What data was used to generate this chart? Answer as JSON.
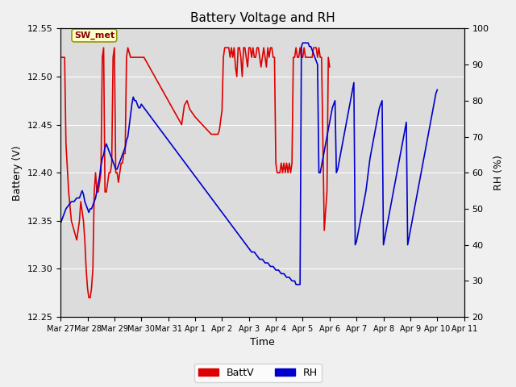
{
  "title": "Battery Voltage and RH",
  "xlabel": "Time",
  "ylabel_left": "Battery (V)",
  "ylabel_right": "RH (%)",
  "station_label": "SW_met",
  "ylim_left": [
    12.25,
    12.55
  ],
  "ylim_right": [
    20,
    100
  ],
  "yticks_left": [
    12.25,
    12.3,
    12.35,
    12.4,
    12.45,
    12.5,
    12.55
  ],
  "yticks_right": [
    20,
    30,
    40,
    50,
    60,
    70,
    80,
    90,
    100
  ],
  "batt_color": "#dd0000",
  "rh_color": "#0000cc",
  "legend_batt": "BattV",
  "legend_rh": "RH",
  "plot_bg_color": "#dcdcdc",
  "fig_bg_color": "#f0f0f0",
  "grid_color": "#ffffff",
  "x_tick_labels": [
    "Mar 27",
    "Mar 28",
    "Mar 29",
    "Mar 30",
    "Mar 31",
    "Apr 1",
    "Apr 2",
    "Apr 3",
    "Apr 4",
    "Apr 5",
    "Apr 6",
    "Apr 7",
    "Apr 8",
    "Apr 9",
    "Apr 10",
    "Apr 11"
  ],
  "x_tick_positions": [
    0,
    1,
    2,
    3,
    4,
    5,
    6,
    7,
    8,
    9,
    10,
    11,
    12,
    13,
    14,
    15
  ],
  "batt_data": [
    [
      0.0,
      12.52
    ],
    [
      0.05,
      12.52
    ],
    [
      0.1,
      12.52
    ],
    [
      0.15,
      12.52
    ],
    [
      0.2,
      12.43
    ],
    [
      0.3,
      12.38
    ],
    [
      0.4,
      12.35
    ],
    [
      0.5,
      12.34
    ],
    [
      0.6,
      12.33
    ],
    [
      0.65,
      12.34
    ],
    [
      0.7,
      12.35
    ],
    [
      0.75,
      12.37
    ],
    [
      0.8,
      12.36
    ],
    [
      0.85,
      12.35
    ],
    [
      0.9,
      12.33
    ],
    [
      0.95,
      12.3
    ],
    [
      1.0,
      12.28
    ],
    [
      1.05,
      12.27
    ],
    [
      1.1,
      12.27
    ],
    [
      1.15,
      12.28
    ],
    [
      1.2,
      12.3
    ],
    [
      1.25,
      12.38
    ],
    [
      1.3,
      12.4
    ],
    [
      1.35,
      12.38
    ],
    [
      1.4,
      12.38
    ],
    [
      1.45,
      12.39
    ],
    [
      1.5,
      12.4
    ],
    [
      1.55,
      12.52
    ],
    [
      1.6,
      12.53
    ],
    [
      1.65,
      12.38
    ],
    [
      1.7,
      12.38
    ],
    [
      1.75,
      12.39
    ],
    [
      1.8,
      12.4
    ],
    [
      1.85,
      12.4
    ],
    [
      1.9,
      12.41
    ],
    [
      1.95,
      12.52
    ],
    [
      2.0,
      12.53
    ],
    [
      2.05,
      12.4
    ],
    [
      2.1,
      12.4
    ],
    [
      2.15,
      12.39
    ],
    [
      2.2,
      12.4
    ],
    [
      2.25,
      12.41
    ],
    [
      2.3,
      12.41
    ],
    [
      2.35,
      12.42
    ],
    [
      2.4,
      12.42
    ],
    [
      2.45,
      12.52
    ],
    [
      2.5,
      12.53
    ],
    [
      2.6,
      12.52
    ],
    [
      2.7,
      12.52
    ],
    [
      2.8,
      12.52
    ],
    [
      3.0,
      12.52
    ],
    [
      3.1,
      12.52
    ],
    [
      3.2,
      12.515
    ],
    [
      3.3,
      12.51
    ],
    [
      3.4,
      12.505
    ],
    [
      3.5,
      12.5
    ],
    [
      3.6,
      12.495
    ],
    [
      3.7,
      12.49
    ],
    [
      3.8,
      12.485
    ],
    [
      3.9,
      12.48
    ],
    [
      4.0,
      12.475
    ],
    [
      4.1,
      12.47
    ],
    [
      4.2,
      12.465
    ],
    [
      4.3,
      12.46
    ],
    [
      4.4,
      12.455
    ],
    [
      4.5,
      12.45
    ],
    [
      4.6,
      12.47
    ],
    [
      4.7,
      12.475
    ],
    [
      4.8,
      12.466
    ],
    [
      4.9,
      12.462
    ],
    [
      5.0,
      12.458
    ],
    [
      5.1,
      12.455
    ],
    [
      5.2,
      12.452
    ],
    [
      5.3,
      12.449
    ],
    [
      5.4,
      12.446
    ],
    [
      5.5,
      12.443
    ],
    [
      5.6,
      12.44
    ],
    [
      5.7,
      12.44
    ],
    [
      5.75,
      12.44
    ],
    [
      5.8,
      12.44
    ],
    [
      5.85,
      12.44
    ],
    [
      5.9,
      12.444
    ],
    [
      6.0,
      12.465
    ],
    [
      6.05,
      12.52
    ],
    [
      6.1,
      12.53
    ],
    [
      6.15,
      12.53
    ],
    [
      6.2,
      12.53
    ],
    [
      6.25,
      12.53
    ],
    [
      6.3,
      12.52
    ],
    [
      6.35,
      12.53
    ],
    [
      6.4,
      12.52
    ],
    [
      6.45,
      12.53
    ],
    [
      6.5,
      12.51
    ],
    [
      6.55,
      12.5
    ],
    [
      6.6,
      12.53
    ],
    [
      6.65,
      12.53
    ],
    [
      6.7,
      12.52
    ],
    [
      6.75,
      12.5
    ],
    [
      6.8,
      12.53
    ],
    [
      6.85,
      12.53
    ],
    [
      6.9,
      12.52
    ],
    [
      6.95,
      12.51
    ],
    [
      7.0,
      12.53
    ],
    [
      7.05,
      12.53
    ],
    [
      7.1,
      12.52
    ],
    [
      7.15,
      12.53
    ],
    [
      7.2,
      12.52
    ],
    [
      7.25,
      12.52
    ],
    [
      7.3,
      12.53
    ],
    [
      7.35,
      12.53
    ],
    [
      7.4,
      12.52
    ],
    [
      7.45,
      12.51
    ],
    [
      7.5,
      12.52
    ],
    [
      7.55,
      12.53
    ],
    [
      7.6,
      12.52
    ],
    [
      7.65,
      12.51
    ],
    [
      7.7,
      12.53
    ],
    [
      7.75,
      12.52
    ],
    [
      7.8,
      12.53
    ],
    [
      7.85,
      12.53
    ],
    [
      7.9,
      12.52
    ],
    [
      7.95,
      12.52
    ],
    [
      8.0,
      12.41
    ],
    [
      8.05,
      12.4
    ],
    [
      8.1,
      12.4
    ],
    [
      8.15,
      12.4
    ],
    [
      8.2,
      12.41
    ],
    [
      8.25,
      12.4
    ],
    [
      8.3,
      12.41
    ],
    [
      8.35,
      12.4
    ],
    [
      8.4,
      12.41
    ],
    [
      8.45,
      12.4
    ],
    [
      8.5,
      12.41
    ],
    [
      8.55,
      12.4
    ],
    [
      8.6,
      12.41
    ],
    [
      8.65,
      12.52
    ],
    [
      8.7,
      12.52
    ],
    [
      8.75,
      12.53
    ],
    [
      8.8,
      12.52
    ],
    [
      8.85,
      12.52
    ],
    [
      8.9,
      12.53
    ],
    [
      8.95,
      12.52
    ],
    [
      9.0,
      12.52
    ],
    [
      9.05,
      12.53
    ],
    [
      9.1,
      12.52
    ],
    [
      9.15,
      12.52
    ],
    [
      9.2,
      12.52
    ],
    [
      9.25,
      12.52
    ],
    [
      9.3,
      12.52
    ],
    [
      9.35,
      12.52
    ],
    [
      9.4,
      12.53
    ],
    [
      9.45,
      12.53
    ],
    [
      9.5,
      12.53
    ],
    [
      9.55,
      12.52
    ],
    [
      9.6,
      12.53
    ],
    [
      9.65,
      12.52
    ],
    [
      9.7,
      12.52
    ],
    [
      9.8,
      12.34
    ],
    [
      9.85,
      12.36
    ],
    [
      9.9,
      12.38
    ],
    [
      9.95,
      12.52
    ],
    [
      10.0,
      12.51
    ]
  ],
  "rh_data": [
    [
      0.0,
      46
    ],
    [
      0.2,
      50
    ],
    [
      0.3,
      51
    ],
    [
      0.4,
      52
    ],
    [
      0.5,
      52
    ],
    [
      0.6,
      53
    ],
    [
      0.7,
      53
    ],
    [
      0.75,
      54
    ],
    [
      0.8,
      55
    ],
    [
      0.85,
      54
    ],
    [
      0.9,
      52
    ],
    [
      0.95,
      51
    ],
    [
      1.0,
      50
    ],
    [
      1.05,
      49
    ],
    [
      1.1,
      50
    ],
    [
      1.15,
      50
    ],
    [
      1.2,
      51
    ],
    [
      1.25,
      52
    ],
    [
      1.3,
      53
    ],
    [
      1.35,
      55
    ],
    [
      1.4,
      57
    ],
    [
      1.45,
      59
    ],
    [
      1.5,
      62
    ],
    [
      1.55,
      64
    ],
    [
      1.6,
      65
    ],
    [
      1.65,
      67
    ],
    [
      1.7,
      68
    ],
    [
      1.75,
      67
    ],
    [
      1.8,
      66
    ],
    [
      1.85,
      65
    ],
    [
      1.9,
      64
    ],
    [
      1.95,
      63
    ],
    [
      2.0,
      62
    ],
    [
      2.05,
      61
    ],
    [
      2.1,
      61
    ],
    [
      2.15,
      62
    ],
    [
      2.2,
      63
    ],
    [
      2.25,
      64
    ],
    [
      2.3,
      65
    ],
    [
      2.35,
      66
    ],
    [
      2.4,
      67
    ],
    [
      2.45,
      69
    ],
    [
      2.5,
      70
    ],
    [
      2.55,
      73
    ],
    [
      2.6,
      76
    ],
    [
      2.65,
      79
    ],
    [
      2.7,
      81
    ],
    [
      2.75,
      80
    ],
    [
      2.8,
      80
    ],
    [
      2.85,
      79
    ],
    [
      2.9,
      78
    ],
    [
      2.95,
      78
    ],
    [
      3.0,
      79
    ],
    [
      3.1,
      78
    ],
    [
      3.2,
      77
    ],
    [
      3.3,
      76
    ],
    [
      3.4,
      75
    ],
    [
      3.5,
      74
    ],
    [
      3.6,
      73
    ],
    [
      3.7,
      72
    ],
    [
      3.8,
      71
    ],
    [
      3.9,
      70
    ],
    [
      4.0,
      69
    ],
    [
      4.1,
      68
    ],
    [
      4.2,
      67
    ],
    [
      4.3,
      66
    ],
    [
      4.4,
      65
    ],
    [
      4.5,
      64
    ],
    [
      4.6,
      63
    ],
    [
      4.7,
      62
    ],
    [
      4.8,
      61
    ],
    [
      4.9,
      60
    ],
    [
      5.0,
      59
    ],
    [
      5.1,
      58
    ],
    [
      5.2,
      57
    ],
    [
      5.3,
      56
    ],
    [
      5.4,
      55
    ],
    [
      5.5,
      54
    ],
    [
      5.6,
      53
    ],
    [
      5.7,
      52
    ],
    [
      5.8,
      51
    ],
    [
      5.9,
      50
    ],
    [
      6.0,
      49
    ],
    [
      6.1,
      48
    ],
    [
      6.2,
      47
    ],
    [
      6.3,
      46
    ],
    [
      6.4,
      45
    ],
    [
      6.5,
      44
    ],
    [
      6.6,
      43
    ],
    [
      6.7,
      42
    ],
    [
      6.8,
      41
    ],
    [
      6.9,
      40
    ],
    [
      7.0,
      39
    ],
    [
      7.1,
      38
    ],
    [
      7.2,
      38
    ],
    [
      7.3,
      37
    ],
    [
      7.4,
      36
    ],
    [
      7.5,
      36
    ],
    [
      7.6,
      35
    ],
    [
      7.7,
      35
    ],
    [
      7.8,
      34
    ],
    [
      7.9,
      34
    ],
    [
      8.0,
      33
    ],
    [
      8.1,
      33
    ],
    [
      8.2,
      32
    ],
    [
      8.3,
      32
    ],
    [
      8.4,
      31
    ],
    [
      8.5,
      31
    ],
    [
      8.6,
      30
    ],
    [
      8.65,
      30
    ],
    [
      8.7,
      30
    ],
    [
      8.75,
      29
    ],
    [
      8.8,
      29
    ],
    [
      8.85,
      29
    ],
    [
      8.9,
      29
    ],
    [
      8.95,
      95
    ],
    [
      9.0,
      96
    ],
    [
      9.05,
      96
    ],
    [
      9.1,
      96
    ],
    [
      9.15,
      96
    ],
    [
      9.2,
      96
    ],
    [
      9.25,
      95
    ],
    [
      9.3,
      95
    ],
    [
      9.35,
      94
    ],
    [
      9.4,
      93
    ],
    [
      9.45,
      92
    ],
    [
      9.5,
      91
    ],
    [
      9.55,
      90
    ],
    [
      9.6,
      60
    ],
    [
      9.65,
      60
    ],
    [
      9.7,
      62
    ],
    [
      9.75,
      64
    ],
    [
      9.8,
      66
    ],
    [
      9.85,
      68
    ],
    [
      9.9,
      70
    ],
    [
      9.95,
      72
    ],
    [
      10.0,
      74
    ],
    [
      10.05,
      76
    ],
    [
      10.1,
      78
    ],
    [
      10.15,
      79
    ],
    [
      10.2,
      80
    ],
    [
      10.25,
      60
    ],
    [
      10.3,
      61
    ],
    [
      10.35,
      63
    ],
    [
      10.4,
      65
    ],
    [
      10.45,
      67
    ],
    [
      10.5,
      69
    ],
    [
      10.55,
      71
    ],
    [
      10.6,
      73
    ],
    [
      10.65,
      75
    ],
    [
      10.7,
      77
    ],
    [
      10.75,
      79
    ],
    [
      10.8,
      81
    ],
    [
      10.85,
      83
    ],
    [
      10.9,
      85
    ],
    [
      10.95,
      40
    ],
    [
      11.0,
      41
    ],
    [
      11.05,
      43
    ],
    [
      11.1,
      45
    ],
    [
      11.15,
      47
    ],
    [
      11.2,
      49
    ],
    [
      11.25,
      51
    ],
    [
      11.3,
      53
    ],
    [
      11.35,
      55
    ],
    [
      11.4,
      58
    ],
    [
      11.45,
      61
    ],
    [
      11.5,
      64
    ],
    [
      11.55,
      66
    ],
    [
      11.6,
      68
    ],
    [
      11.65,
      70
    ],
    [
      11.7,
      72
    ],
    [
      11.75,
      74
    ],
    [
      11.8,
      76
    ],
    [
      11.85,
      78
    ],
    [
      11.9,
      79
    ],
    [
      11.95,
      80
    ],
    [
      12.0,
      40
    ],
    [
      12.05,
      42
    ],
    [
      12.1,
      44
    ],
    [
      12.15,
      46
    ],
    [
      12.2,
      48
    ],
    [
      12.25,
      50
    ],
    [
      12.3,
      52
    ],
    [
      12.35,
      54
    ],
    [
      12.4,
      56
    ],
    [
      12.45,
      58
    ],
    [
      12.5,
      60
    ],
    [
      12.55,
      62
    ],
    [
      12.6,
      64
    ],
    [
      12.65,
      66
    ],
    [
      12.7,
      68
    ],
    [
      12.75,
      70
    ],
    [
      12.8,
      72
    ],
    [
      12.85,
      74
    ],
    [
      12.9,
      40
    ],
    [
      12.95,
      42
    ],
    [
      13.0,
      44
    ],
    [
      13.05,
      46
    ],
    [
      13.1,
      48
    ],
    [
      13.15,
      50
    ],
    [
      13.2,
      52
    ],
    [
      13.25,
      54
    ],
    [
      13.3,
      56
    ],
    [
      13.35,
      58
    ],
    [
      13.4,
      60
    ],
    [
      13.45,
      62
    ],
    [
      13.5,
      64
    ],
    [
      13.55,
      66
    ],
    [
      13.6,
      68
    ],
    [
      13.65,
      70
    ],
    [
      13.7,
      72
    ],
    [
      13.75,
      74
    ],
    [
      13.8,
      76
    ],
    [
      13.85,
      78
    ],
    [
      13.9,
      80
    ],
    [
      13.95,
      82
    ],
    [
      14.0,
      83
    ]
  ]
}
